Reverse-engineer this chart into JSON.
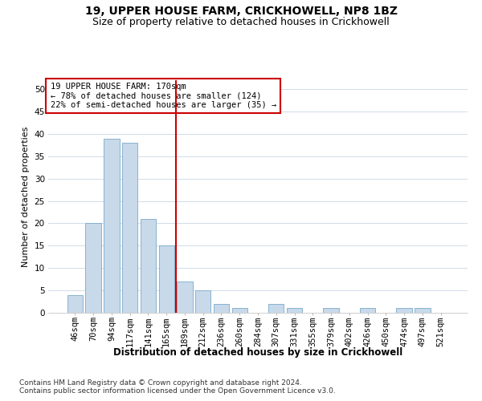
{
  "title": "19, UPPER HOUSE FARM, CRICKHOWELL, NP8 1BZ",
  "subtitle": "Size of property relative to detached houses in Crickhowell",
  "xlabel": "Distribution of detached houses by size in Crickhowell",
  "ylabel": "Number of detached properties",
  "categories": [
    "46sqm",
    "70sqm",
    "94sqm",
    "117sqm",
    "141sqm",
    "165sqm",
    "189sqm",
    "212sqm",
    "236sqm",
    "260sqm",
    "284sqm",
    "307sqm",
    "331sqm",
    "355sqm",
    "379sqm",
    "402sqm",
    "426sqm",
    "450sqm",
    "474sqm",
    "497sqm",
    "521sqm"
  ],
  "values": [
    4,
    20,
    39,
    38,
    21,
    15,
    7,
    5,
    2,
    1,
    0,
    2,
    1,
    0,
    1,
    0,
    1,
    0,
    1,
    1,
    0
  ],
  "bar_color": "#c8d9ea",
  "bar_edgecolor": "#7aaac8",
  "vline_color": "#cc0000",
  "annotation_text": "19 UPPER HOUSE FARM: 170sqm\n← 78% of detached houses are smaller (124)\n22% of semi-detached houses are larger (35) →",
  "annotation_box_color": "#ffffff",
  "annotation_box_edgecolor": "#cc0000",
  "ylim": [
    0,
    52
  ],
  "yticks": [
    0,
    5,
    10,
    15,
    20,
    25,
    30,
    35,
    40,
    45,
    50
  ],
  "footnote1": "Contains HM Land Registry data © Crown copyright and database right 2024.",
  "footnote2": "Contains public sector information licensed under the Open Government Licence v3.0.",
  "background_color": "#ffffff",
  "grid_color": "#d0dce8",
  "title_fontsize": 10,
  "subtitle_fontsize": 9,
  "ylabel_fontsize": 8,
  "xlabel_fontsize": 8.5,
  "tick_fontsize": 7.5,
  "annotation_fontsize": 7.5,
  "footnote_fontsize": 6.5
}
